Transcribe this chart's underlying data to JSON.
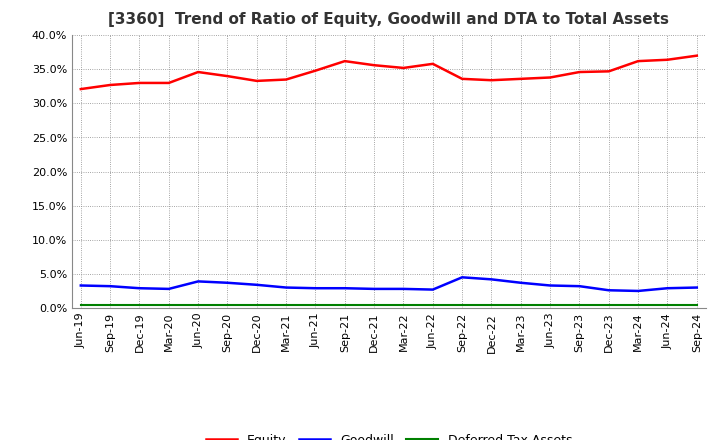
{
  "title": "[3360]  Trend of Ratio of Equity, Goodwill and DTA to Total Assets",
  "labels": [
    "Jun-19",
    "Sep-19",
    "Dec-19",
    "Mar-20",
    "Jun-20",
    "Sep-20",
    "Dec-20",
    "Mar-21",
    "Jun-21",
    "Sep-21",
    "Dec-21",
    "Mar-22",
    "Jun-22",
    "Sep-22",
    "Dec-22",
    "Mar-23",
    "Jun-23",
    "Sep-23",
    "Dec-23",
    "Mar-24",
    "Jun-24",
    "Sep-24"
  ],
  "equity": [
    0.321,
    0.327,
    0.33,
    0.33,
    0.346,
    0.34,
    0.333,
    0.335,
    0.348,
    0.362,
    0.356,
    0.352,
    0.358,
    0.336,
    0.334,
    0.336,
    0.338,
    0.346,
    0.347,
    0.362,
    0.364,
    0.37
  ],
  "goodwill": [
    0.033,
    0.032,
    0.029,
    0.028,
    0.039,
    0.037,
    0.034,
    0.03,
    0.029,
    0.029,
    0.028,
    0.028,
    0.027,
    0.045,
    0.042,
    0.037,
    0.033,
    0.032,
    0.026,
    0.025,
    0.029,
    0.03
  ],
  "dta": [
    0.005,
    0.005,
    0.005,
    0.005,
    0.005,
    0.005,
    0.005,
    0.005,
    0.005,
    0.005,
    0.005,
    0.005,
    0.005,
    0.005,
    0.005,
    0.005,
    0.005,
    0.005,
    0.005,
    0.005,
    0.005,
    0.005
  ],
  "equity_color": "#FF0000",
  "goodwill_color": "#0000FF",
  "dta_color": "#008000",
  "ylim": [
    0.0,
    0.4
  ],
  "yticks": [
    0.0,
    0.05,
    0.1,
    0.15,
    0.2,
    0.25,
    0.3,
    0.35,
    0.4
  ],
  "background_color": "#FFFFFF",
  "grid_color": "#AAAAAA",
  "title_fontsize": 11,
  "tick_fontsize": 8,
  "legend_fontsize": 9
}
